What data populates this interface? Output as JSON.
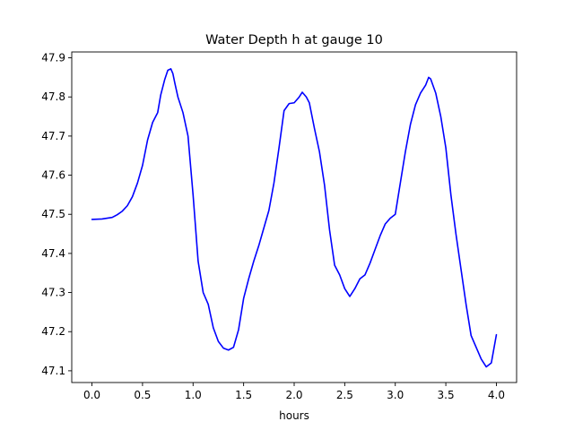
{
  "chart_data": {
    "type": "line",
    "title": "Water Depth h at gauge 10",
    "xlabel": "hours",
    "ylabel": "",
    "xlim": [
      -0.2,
      4.2
    ],
    "ylim": [
      47.07,
      47.915
    ],
    "xticks": [
      0.0,
      0.5,
      1.0,
      1.5,
      2.0,
      2.5,
      3.0,
      3.5,
      4.0
    ],
    "xtick_labels": [
      "0.0",
      "0.5",
      "1.0",
      "1.5",
      "2.0",
      "2.5",
      "3.0",
      "3.5",
      "4.0"
    ],
    "yticks": [
      47.1,
      47.2,
      47.3,
      47.4,
      47.5,
      47.6,
      47.7,
      47.8,
      47.9
    ],
    "ytick_labels": [
      "47.1",
      "47.2",
      "47.3",
      "47.4",
      "47.5",
      "47.6",
      "47.7",
      "47.8",
      "47.9"
    ],
    "grid": false,
    "series": [
      {
        "color": "#0000ff",
        "x": [
          0.0,
          0.1,
          0.2,
          0.25,
          0.3,
          0.35,
          0.4,
          0.45,
          0.5,
          0.55,
          0.6,
          0.65,
          0.68,
          0.72,
          0.75,
          0.78,
          0.8,
          0.82,
          0.85,
          0.9,
          0.95,
          1.0,
          1.05,
          1.1,
          1.15,
          1.2,
          1.25,
          1.3,
          1.35,
          1.4,
          1.45,
          1.5,
          1.55,
          1.6,
          1.65,
          1.7,
          1.75,
          1.8,
          1.85,
          1.9,
          1.95,
          2.0,
          2.05,
          2.08,
          2.12,
          2.15,
          2.2,
          2.25,
          2.3,
          2.35,
          2.4,
          2.45,
          2.5,
          2.55,
          2.6,
          2.65,
          2.7,
          2.75,
          2.8,
          2.85,
          2.9,
          2.95,
          3.0,
          3.05,
          3.1,
          3.15,
          3.2,
          3.25,
          3.3,
          3.33,
          3.35,
          3.4,
          3.45,
          3.5,
          3.55,
          3.6,
          3.65,
          3.7,
          3.75,
          3.8,
          3.85,
          3.9,
          3.95,
          4.0
        ],
        "values": [
          47.487,
          47.488,
          47.492,
          47.499,
          47.508,
          47.522,
          47.545,
          47.58,
          47.625,
          47.69,
          47.735,
          47.76,
          47.805,
          47.845,
          47.868,
          47.872,
          47.86,
          47.835,
          47.8,
          47.76,
          47.7,
          47.55,
          47.38,
          47.3,
          47.27,
          47.21,
          47.175,
          47.158,
          47.153,
          47.16,
          47.205,
          47.285,
          47.335,
          47.38,
          47.42,
          47.465,
          47.51,
          47.58,
          47.67,
          47.765,
          47.783,
          47.785,
          47.8,
          47.812,
          47.8,
          47.785,
          47.72,
          47.66,
          47.575,
          47.46,
          47.37,
          47.345,
          47.31,
          47.29,
          47.31,
          47.335,
          47.345,
          47.375,
          47.41,
          47.445,
          47.475,
          47.49,
          47.5,
          47.58,
          47.66,
          47.73,
          47.78,
          47.81,
          47.83,
          47.85,
          47.846,
          47.81,
          47.75,
          47.67,
          47.55,
          47.45,
          47.36,
          47.27,
          47.19,
          47.16,
          47.13,
          47.11,
          47.12,
          47.192
        ]
      }
    ]
  }
}
